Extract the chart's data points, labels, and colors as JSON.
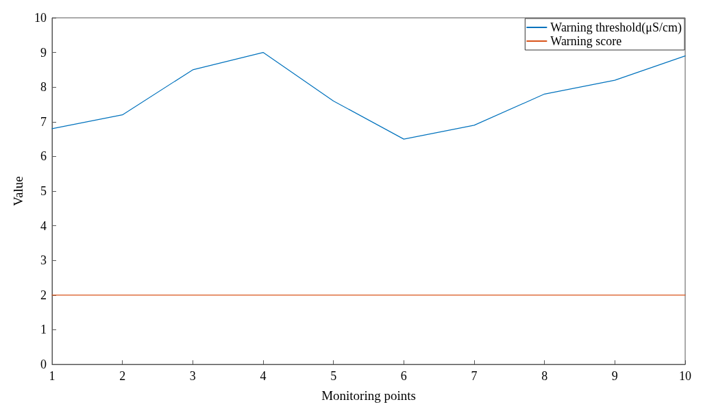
{
  "chart_data": {
    "type": "line",
    "xlabel": "Monitoring points",
    "ylabel": "Value",
    "x": [
      1,
      2,
      3,
      4,
      5,
      6,
      7,
      8,
      9,
      10
    ],
    "series": [
      {
        "name": "Warning threshold(μS/cm)",
        "color": "#0072bd",
        "values": [
          6.8,
          7.2,
          8.5,
          9.0,
          7.6,
          6.5,
          6.9,
          7.8,
          8.2,
          8.9
        ]
      },
      {
        "name": "Warning score",
        "color": "#d95319",
        "values": [
          2,
          2,
          2,
          2,
          2,
          2,
          2,
          2,
          2,
          2
        ]
      }
    ],
    "xlim": [
      1,
      10
    ],
    "xticks": [
      1,
      2,
      3,
      4,
      5,
      6,
      7,
      8,
      9,
      10
    ],
    "ylim": [
      0,
      10
    ],
    "yticks": [
      0,
      1,
      2,
      3,
      4,
      5,
      6,
      7,
      8,
      9,
      10
    ],
    "grid": false,
    "legend": "top right",
    "marker": "none",
    "line_style": "solid"
  }
}
